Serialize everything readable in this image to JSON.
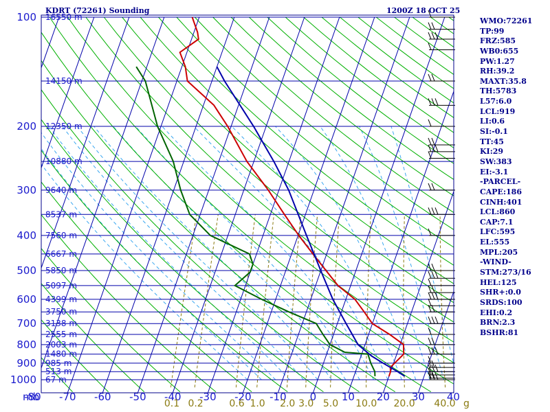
{
  "chart_data": {
    "type": "line",
    "subtype": "skew-T log-P sounding diagram",
    "title": "KDRT (72261) Sounding",
    "time_label": "1200Z 18 OCT 25",
    "pressure_unit_label": "mb",
    "mixing_ratio_unit_label": "g",
    "pressure_ticks": [
      100,
      200,
      300,
      400,
      500,
      600,
      700,
      800,
      900,
      1000
    ],
    "temperature_ticks": [
      -80,
      -70,
      -60,
      -50,
      -40,
      -30,
      -20,
      -10,
      0,
      10,
      20,
      30,
      40
    ],
    "mixing_ratio_ticks": [
      "0.1",
      "0.2",
      "0.6",
      "1.0",
      "2.0",
      "3.0",
      "5.0",
      "10.0",
      "20.0",
      "40.0"
    ],
    "height_labels": [
      {
        "p": 100,
        "text": "16550 m"
      },
      {
        "p": 150,
        "text": "14150 m"
      },
      {
        "p": 200,
        "text": "12350 m"
      },
      {
        "p": 250,
        "text": "10880 m"
      },
      {
        "p": 300,
        "text": "9640 m"
      },
      {
        "p": 350,
        "text": "8537 m"
      },
      {
        "p": 400,
        "text": "7560 m"
      },
      {
        "p": 450,
        "text": "6667 m"
      },
      {
        "p": 500,
        "text": "5850 m"
      },
      {
        "p": 550,
        "text": "5097 m"
      },
      {
        "p": 600,
        "text": "4399 m"
      },
      {
        "p": 650,
        "text": "3750 m"
      },
      {
        "p": 700,
        "text": "3138 m"
      },
      {
        "p": 750,
        "text": "2555 m"
      },
      {
        "p": 800,
        "text": "2003 m"
      },
      {
        "p": 850,
        "text": "1480 m"
      },
      {
        "p": 900,
        "text": "985 m"
      },
      {
        "p": 950,
        "text": "513 m"
      },
      {
        "p": 1000,
        "text": "67 m"
      }
    ],
    "series": [
      {
        "name": "Temperature",
        "color": "#cc0000",
        "points": [
          [
            978,
            20.0
          ],
          [
            950,
            20.0
          ],
          [
            925,
            19.5
          ],
          [
            850,
            22.0
          ],
          [
            800,
            21.0
          ],
          [
            750,
            16.0
          ],
          [
            700,
            10.0
          ],
          [
            650,
            6.5
          ],
          [
            600,
            2.6
          ],
          [
            550,
            -3.6
          ],
          [
            500,
            -8.5
          ],
          [
            450,
            -13.9
          ],
          [
            400,
            -19.8
          ],
          [
            350,
            -26.0
          ],
          [
            300,
            -33.0
          ],
          [
            250,
            -42.0
          ],
          [
            200,
            -51.0
          ],
          [
            175,
            -57.0
          ],
          [
            150,
            -67.0
          ],
          [
            137,
            -69.0
          ],
          [
            125,
            -72.0
          ],
          [
            115,
            -68.0
          ],
          [
            110,
            -69.0
          ],
          [
            100,
            -72.0
          ]
        ]
      },
      {
        "name": "Dewpoint",
        "color": "#006400",
        "points": [
          [
            978,
            16.0
          ],
          [
            950,
            15.5
          ],
          [
            900,
            13.5
          ],
          [
            850,
            11.8
          ],
          [
            840,
            5.0
          ],
          [
            800,
            0.0
          ],
          [
            750,
            -3.0
          ],
          [
            700,
            -6.0
          ],
          [
            650,
            -15.0
          ],
          [
            600,
            -24.0
          ],
          [
            550,
            -33.0
          ],
          [
            505,
            -30.0
          ],
          [
            480,
            -30.0
          ],
          [
            450,
            -32.0
          ],
          [
            400,
            -45.0
          ],
          [
            350,
            -53.0
          ],
          [
            300,
            -58.0
          ],
          [
            250,
            -63.0
          ],
          [
            200,
            -71.0
          ],
          [
            150,
            -79.0
          ],
          [
            137,
            -83.0
          ]
        ]
      },
      {
        "name": "Parcel",
        "color": "#0000aa",
        "points": [
          [
            978,
            24.5
          ],
          [
            950,
            22.0
          ],
          [
            900,
            17.0
          ],
          [
            860,
            13.0
          ],
          [
            800,
            8.0
          ],
          [
            700,
            2.5
          ],
          [
            600,
            -3.7
          ],
          [
            500,
            -10.0
          ],
          [
            400,
            -17.6
          ],
          [
            300,
            -27.2
          ],
          [
            250,
            -34.3
          ],
          [
            200,
            -43.6
          ],
          [
            150,
            -56.4
          ],
          [
            137,
            -60.0
          ]
        ]
      }
    ],
    "wind_barbs": [
      {
        "p": 100
      },
      {
        "p": 108
      },
      {
        "p": 115
      },
      {
        "p": 123
      },
      {
        "p": 150
      },
      {
        "p": 175
      },
      {
        "p": 200
      },
      {
        "p": 225
      },
      {
        "p": 235
      },
      {
        "p": 245
      },
      {
        "p": 300
      },
      {
        "p": 350
      },
      {
        "p": 400
      },
      {
        "p": 500
      },
      {
        "p": 525
      },
      {
        "p": 550
      },
      {
        "p": 575
      },
      {
        "p": 600
      },
      {
        "p": 625
      },
      {
        "p": 650
      },
      {
        "p": 700
      },
      {
        "p": 750
      },
      {
        "p": 800
      },
      {
        "p": 850
      },
      {
        "p": 900
      },
      {
        "p": 925
      },
      {
        "p": 950
      },
      {
        "p": 970
      },
      {
        "p": 990
      },
      {
        "p": 1000
      }
    ]
  },
  "indices": [
    "WMO:72261",
    "TP:99",
    "FRZ:585",
    "WB0:655",
    "PW:1.27",
    "RH:39.2",
    "MAXT:35.8",
    "TH:5783",
    "L57:6.0",
    "LCL:919",
    "LI:0.6",
    "SI:-0.1",
    "TT:45",
    "KI:29",
    "SW:383",
    "EI:-3.1",
    "-PARCEL-",
    "CAPE:186",
    "CINH:401",
    "LCL:860",
    "CAP:7.1",
    "LFC:595",
    "EL:555",
    "MPL:205",
    "-WIND-",
    "STM:273/16",
    "HEL:125",
    "SHR+:0.0",
    "SRDS:100",
    "EHI:0.2",
    "BRN:2.3",
    "BSHR:81"
  ],
  "colors": {
    "frame": "#00008b",
    "isobar": "#0000aa",
    "isotherm": "#0000aa",
    "dry_adiabat": "#00b000",
    "moist_adiabat": "#3aa7f0",
    "mixing_ratio": "#8a7a10"
  }
}
